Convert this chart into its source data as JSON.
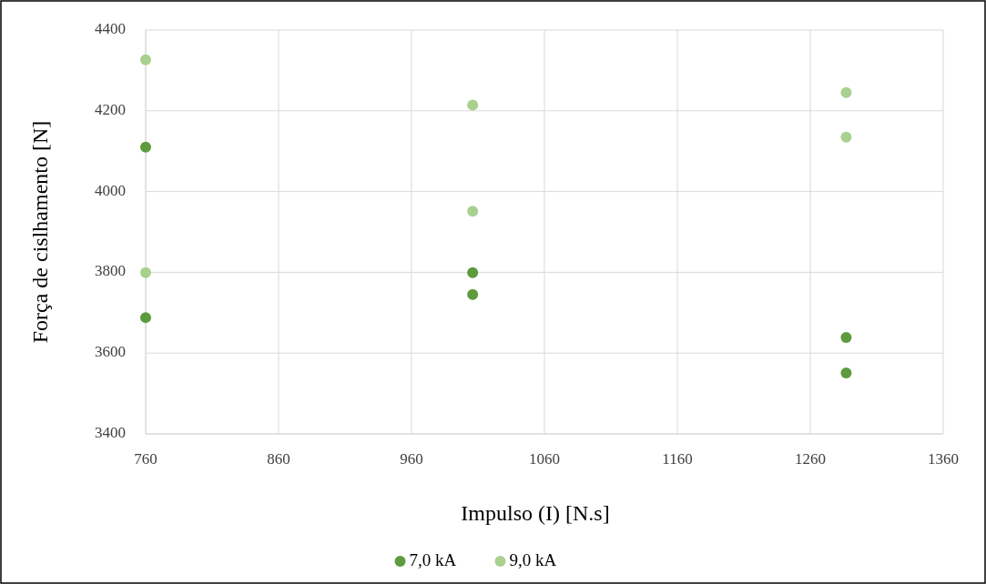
{
  "chart_data": {
    "type": "scatter",
    "xlabel": "Impulso  (I) [N.s]",
    "ylabel": "Força de cislhamento  [N]",
    "xlim": [
      760,
      1360
    ],
    "xticks": [
      760,
      860,
      960,
      1060,
      1160,
      1260,
      1360
    ],
    "ylim": [
      3400,
      4400
    ],
    "yticks": [
      3400,
      3600,
      3800,
      4000,
      4200,
      4400
    ],
    "grid": true,
    "legend": "bottom",
    "marker": "circle",
    "series": [
      {
        "name": "7,0 kA",
        "color": "#5e9a3e",
        "x": [
          760,
          760,
          1006,
          1006,
          1287,
          1287
        ],
        "values": [
          4110,
          3688,
          3799,
          3745,
          3639,
          3551
        ]
      },
      {
        "name": "9,0 kA",
        "color": "#a9d08e",
        "x": [
          760,
          760,
          1006,
          1006,
          1287,
          1287
        ],
        "values": [
          4326,
          3799,
          4214,
          3951,
          4245,
          4135
        ]
      }
    ]
  }
}
